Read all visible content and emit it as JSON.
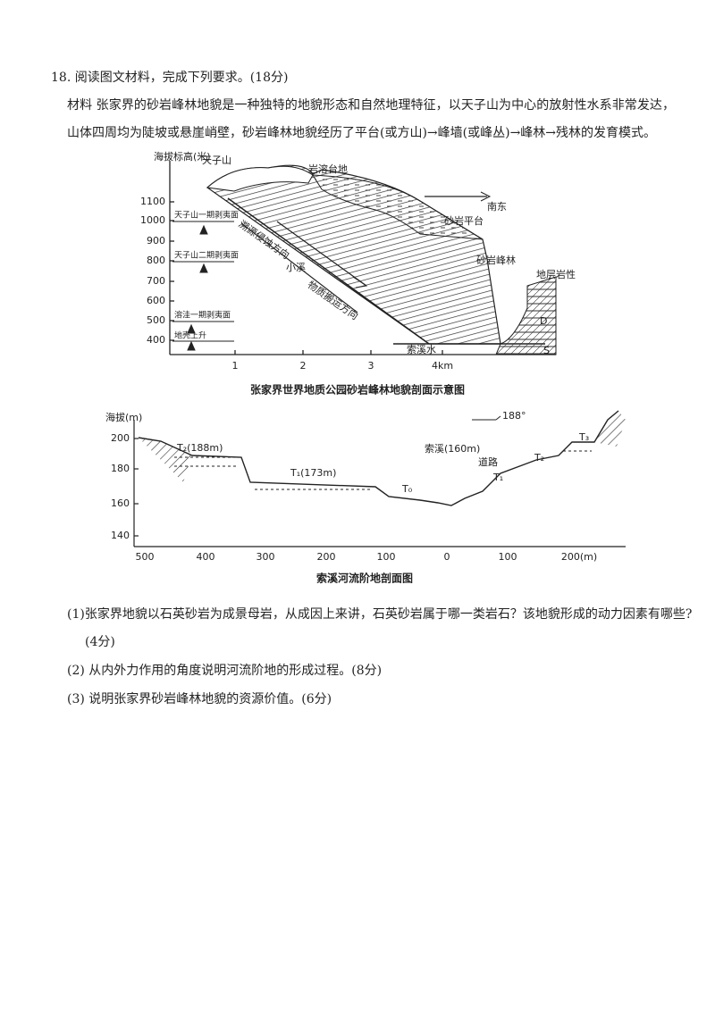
{
  "question": {
    "number_title": "18. 阅读图文材料，完成下列要求。(18分)",
    "material": "材料 张家界的砂岩峰林地貌是一种独特的地貌形态和自然地理特征，以天子山为中心的放射性水系非常发达，山体四周均为陡坡或悬崖峭壁，砂岩峰林地貌经历了平台(或方山)→峰墙(或峰丛)→峰林→残林的发育模式。"
  },
  "figure1": {
    "y_axis_label": "海拔标高(米)",
    "yticks": [
      "1100",
      "1000",
      "900",
      "800",
      "700",
      "600",
      "500",
      "400"
    ],
    "xticks": [
      "1",
      "2",
      "3",
      "4km"
    ],
    "labels": {
      "peak": "天子山",
      "karst": "岩溶台地",
      "direction": "南东",
      "platform": "砂岩平台",
      "forest": "砂岩峰林",
      "strata": "地层岩性",
      "surface1": "天子山一期剥夷面",
      "surface2": "天子山二期剥夷面",
      "surface3": "溶洼一期剥夷面",
      "uplift": "地壳上升",
      "erosion": "溯源侵蚀方向",
      "stream": "小溪",
      "transport": "物质搬运方向",
      "river": "索溪水",
      "layer_d": "D",
      "layer_s": "S"
    },
    "caption": "张家界世界地质公园砂岩峰林地貌剖面示意图"
  },
  "figure2": {
    "y_axis_label": "海拔(m)",
    "yticks": [
      "200",
      "180",
      "160",
      "140"
    ],
    "xticks": [
      "500",
      "400",
      "300",
      "200",
      "100",
      "0",
      "100",
      "200(m)"
    ],
    "labels": {
      "t2_left": "T₂(188m)",
      "t1_left": "T₁(173m)",
      "t0": "T₀",
      "river": "索溪(160m)",
      "road": "道路",
      "t1_right": "T₁",
      "t2_right": "T₂",
      "t3_right": "T₃",
      "legend": "188°"
    },
    "caption": "索溪河流阶地剖面图"
  },
  "subquestions": [
    {
      "text": "(1)张家界地貌以石英砂岩为成景母岩，从成因上来讲，石英砂岩属于哪一类岩石？该地貌形成的动力因素有哪些?",
      "score": "(4分)"
    },
    {
      "text": "(2) 从内外力作用的角度说明河流阶地的形成过程。(8分)"
    },
    {
      "text": "(3) 说明张家界砂岩峰林地貌的资源价值。(6分)"
    }
  ]
}
